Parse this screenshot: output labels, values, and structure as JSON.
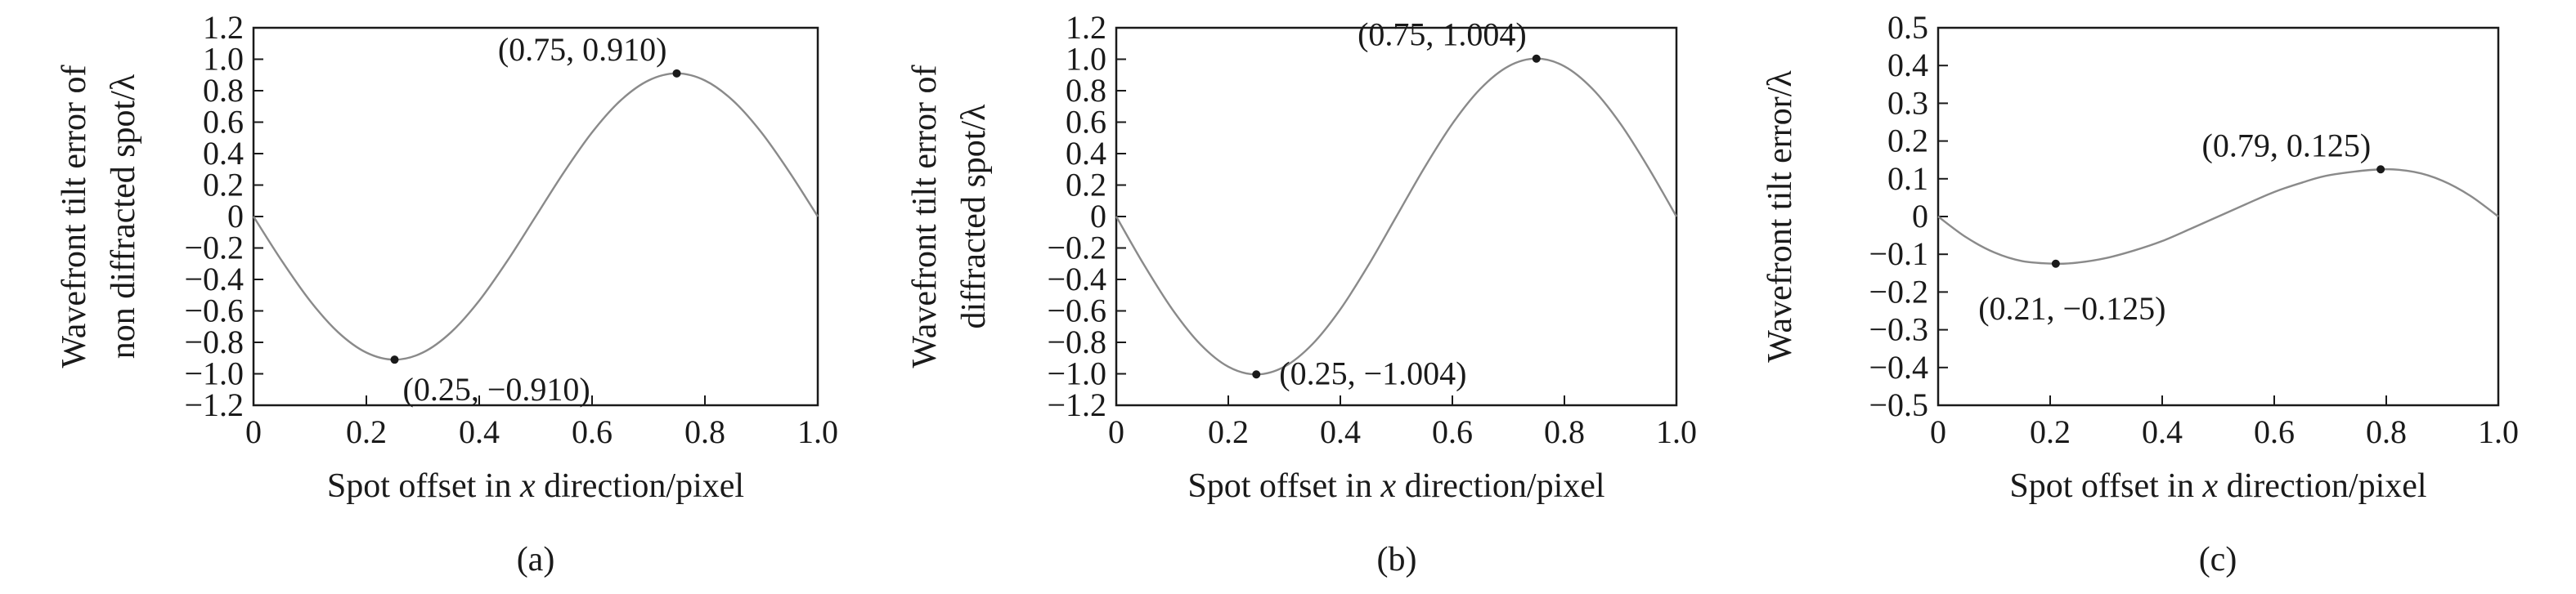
{
  "chart_data": [
    {
      "type": "line",
      "panel_label": "(a)",
      "xlabel_parts": [
        "Spot offset in ",
        "x",
        " direction/pixel"
      ],
      "ylabel_lines": [
        "Wavefront tilt error of",
        "non diffracted spot/λ"
      ],
      "xlim": [
        0,
        1.0
      ],
      "ylim": [
        -1.2,
        1.2
      ],
      "xticks": [
        0,
        0.2,
        0.4,
        0.6,
        0.8,
        1.0
      ],
      "xtick_labels": [
        "0",
        "0.2",
        "0.4",
        "0.6",
        "0.8",
        "1.0"
      ],
      "yticks": [
        1.2,
        1.0,
        0.8,
        0.6,
        0.4,
        0.2,
        0,
        -0.2,
        -0.4,
        -0.6,
        -0.8,
        -1.0,
        -1.2
      ],
      "ytick_labels": [
        "1.2",
        "1.0",
        "0.8",
        "0.6",
        "0.4",
        "0.2",
        "0",
        "−0.2",
        "−0.4",
        "−0.6",
        "−0.8",
        "−1.0",
        "−1.2"
      ],
      "series": [
        {
          "x": [
            0,
            0.05,
            0.1,
            0.15,
            0.2,
            0.25,
            0.3,
            0.35,
            0.4,
            0.45,
            0.5,
            0.55,
            0.6,
            0.65,
            0.7,
            0.75,
            0.8,
            0.85,
            0.9,
            0.95,
            1.0
          ],
          "y": [
            0,
            -0.281,
            -0.535,
            -0.736,
            -0.865,
            -0.91,
            -0.865,
            -0.736,
            -0.535,
            -0.281,
            0,
            0.281,
            0.535,
            0.736,
            0.865,
            0.91,
            0.865,
            0.736,
            0.535,
            0.281,
            0
          ]
        }
      ],
      "annotations": [
        {
          "x": 0.75,
          "y": 0.91,
          "text": "(0.75, 0.910)",
          "placement": "above-left"
        },
        {
          "x": 0.25,
          "y": -0.91,
          "text": "(0.25, −0.910)",
          "placement": "below-right"
        }
      ]
    },
    {
      "type": "line",
      "panel_label": "(b)",
      "xlabel_parts": [
        "Spot offset in ",
        "x",
        " direction/pixel"
      ],
      "ylabel_lines": [
        "Wavefront tilt error of",
        "diffracted spot/λ"
      ],
      "xlim": [
        0,
        1.0
      ],
      "ylim": [
        -1.2,
        1.2
      ],
      "xticks": [
        0,
        0.2,
        0.4,
        0.6,
        0.8,
        1.0
      ],
      "xtick_labels": [
        "0",
        "0.2",
        "0.4",
        "0.6",
        "0.8",
        "1.0"
      ],
      "yticks": [
        1.2,
        1.0,
        0.8,
        0.6,
        0.4,
        0.2,
        0,
        -0.2,
        -0.4,
        -0.6,
        -0.8,
        -1.0,
        -1.2
      ],
      "ytick_labels": [
        "1.2",
        "1.0",
        "0.8",
        "0.6",
        "0.4",
        "0.2",
        "0",
        "−0.2",
        "−0.4",
        "−0.6",
        "−0.8",
        "−1.0",
        "−1.2"
      ],
      "series": [
        {
          "x": [
            0,
            0.05,
            0.1,
            0.15,
            0.2,
            0.25,
            0.3,
            0.35,
            0.4,
            0.45,
            0.5,
            0.55,
            0.6,
            0.65,
            0.7,
            0.75,
            0.8,
            0.85,
            0.9,
            0.95,
            1.0
          ],
          "y": [
            0,
            -0.31,
            -0.59,
            -0.812,
            -0.955,
            -1.004,
            -0.955,
            -0.812,
            -0.59,
            -0.31,
            0,
            0.31,
            0.59,
            0.812,
            0.955,
            1.004,
            0.955,
            0.812,
            0.59,
            0.31,
            0
          ]
        }
      ],
      "annotations": [
        {
          "x": 0.75,
          "y": 1.004,
          "text": "(0.75, 1.004)",
          "placement": "above-left"
        },
        {
          "x": 0.25,
          "y": -1.004,
          "text": "(0.25, −1.004)",
          "placement": "right"
        }
      ]
    },
    {
      "type": "line",
      "panel_label": "(c)",
      "xlabel_parts": [
        "Spot offset in ",
        "x",
        " direction/pixel"
      ],
      "ylabel_lines": [
        "Wavefront tilt error/λ"
      ],
      "xlim": [
        0,
        1.0
      ],
      "ylim": [
        -0.5,
        0.5
      ],
      "xticks": [
        0,
        0.2,
        0.4,
        0.6,
        0.8,
        1.0
      ],
      "xtick_labels": [
        "0",
        "0.2",
        "0.4",
        "0.6",
        "0.8",
        "1.0"
      ],
      "yticks": [
        0.5,
        0.4,
        0.3,
        0.2,
        0.1,
        0,
        -0.1,
        -0.2,
        -0.3,
        -0.4,
        -0.5
      ],
      "ytick_labels": [
        "0.5",
        "0.4",
        "0.3",
        "0.2",
        "0.1",
        "0",
        "−0.1",
        "−0.2",
        "−0.3",
        "−0.4",
        "−0.5"
      ],
      "series": [
        {
          "x": [
            0,
            0.05,
            0.1,
            0.15,
            0.21,
            0.25,
            0.3,
            0.35,
            0.4,
            0.45,
            0.5,
            0.55,
            0.6,
            0.65,
            0.7,
            0.79,
            0.85,
            0.9,
            0.95,
            1.0
          ],
          "y": [
            0,
            -0.055,
            -0.095,
            -0.118,
            -0.125,
            -0.122,
            -0.11,
            -0.09,
            -0.065,
            -0.033,
            0,
            0.033,
            0.065,
            0.09,
            0.11,
            0.125,
            0.118,
            0.095,
            0.055,
            0
          ]
        }
      ],
      "annotations": [
        {
          "x": 0.79,
          "y": 0.125,
          "text": "(0.79, 0.125)",
          "placement": "above-left"
        },
        {
          "x": 0.21,
          "y": -0.125,
          "text": "(0.21, −0.125)",
          "placement": "below"
        }
      ]
    }
  ]
}
